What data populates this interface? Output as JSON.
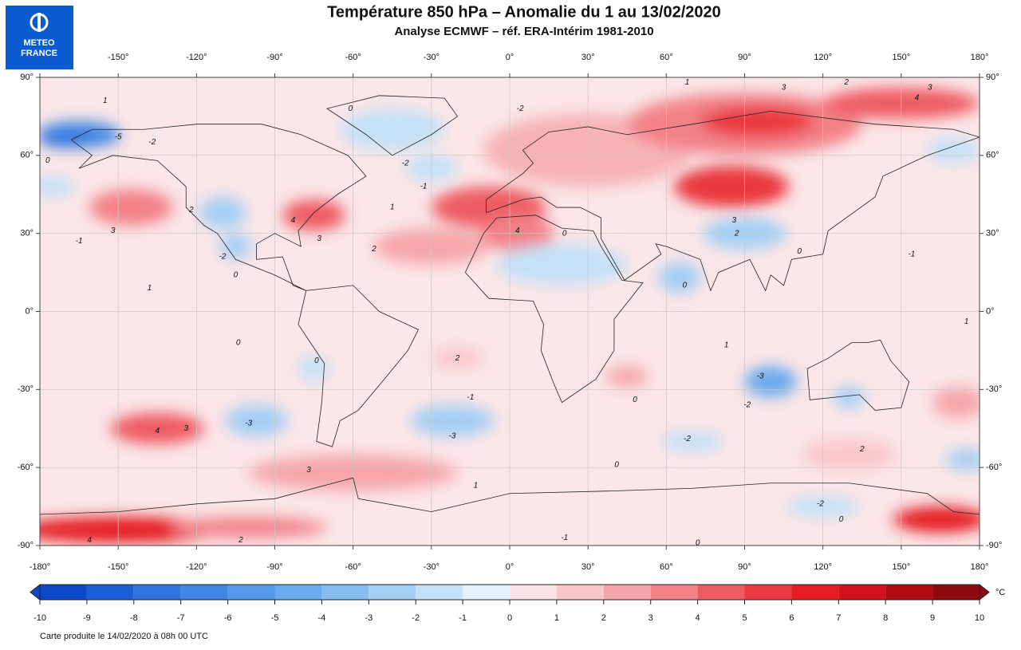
{
  "logo": {
    "line1": "METEO",
    "line2": "FRANCE"
  },
  "title": "Température 850 hPa – Anomalie du 1 au 13/02/2020",
  "subtitle": "Analyse ECMWF – réf. ERA-Intérim 1981-2010",
  "map": {
    "xlim": [
      -180,
      180
    ],
    "ylim": [
      -90,
      90
    ],
    "xticks": [
      {
        "value": -180,
        "label": "-180°"
      },
      {
        "value": -150,
        "label": "-150°"
      },
      {
        "value": -120,
        "label": "-120°"
      },
      {
        "value": -90,
        "label": "-90°"
      },
      {
        "value": -60,
        "label": "-60°"
      },
      {
        "value": -30,
        "label": "-30°"
      },
      {
        "value": 0,
        "label": "0°"
      },
      {
        "value": 30,
        "label": "30°"
      },
      {
        "value": 60,
        "label": "60°"
      },
      {
        "value": 90,
        "label": "90°"
      },
      {
        "value": 120,
        "label": "120°"
      },
      {
        "value": 150,
        "label": "150°"
      },
      {
        "value": 180,
        "label": "180°"
      }
    ],
    "yticks": [
      {
        "value": 90,
        "label": "90°"
      },
      {
        "value": 60,
        "label": "60°"
      },
      {
        "value": 30,
        "label": "30°"
      },
      {
        "value": 0,
        "label": "0°"
      },
      {
        "value": -30,
        "label": "-30°"
      },
      {
        "value": -60,
        "label": "-60°"
      },
      {
        "value": -90,
        "label": "-90°"
      }
    ],
    "contour_labels": [
      1,
      -5,
      0,
      -2,
      2,
      3,
      -1,
      -2,
      0,
      1,
      4,
      3,
      2,
      0,
      -2,
      -2,
      -1,
      1,
      1,
      3,
      2,
      3,
      4,
      4,
      0,
      3,
      2,
      0,
      -1,
      0,
      1,
      0,
      2,
      0,
      -3,
      4,
      3,
      -3,
      -1,
      -3,
      -2,
      0,
      -2,
      2,
      0,
      3,
      1,
      -2,
      0,
      -1,
      0,
      4,
      2,
      1
    ]
  },
  "colorbar": {
    "ticks": [
      -10,
      -9,
      -8,
      -7,
      -6,
      -5,
      -4,
      -3,
      -2,
      -1,
      0,
      1,
      2,
      3,
      4,
      5,
      6,
      7,
      8,
      9,
      10
    ],
    "colors": [
      "#0d47c9",
      "#1a5fd6",
      "#2f74df",
      "#3f86e5",
      "#5499ea",
      "#6aabed",
      "#84bdf1",
      "#a3cff4",
      "#c4e1f7",
      "#e4f1fb",
      "#fbe4e6",
      "#f9c7cb",
      "#f6a6ab",
      "#f28288",
      "#ee5c63",
      "#ea3a40",
      "#e51d23",
      "#d0121a",
      "#b10c12",
      "#8e0a0e"
    ],
    "unit": "°C"
  },
  "footer": "Carte produite le 14/02/2020 à 08h 00 UTC"
}
